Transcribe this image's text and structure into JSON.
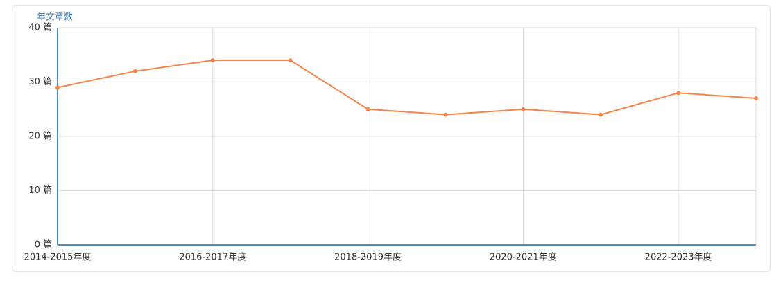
{
  "chart_data": {
    "type": "line",
    "y_axis_name": "年文章数",
    "categories": [
      "2014-2015年度",
      null,
      "2016-2017年度",
      null,
      "2018-2019年度",
      null,
      "2020-2021年度",
      null,
      "2022-2023年度",
      null
    ],
    "series": [
      {
        "name": "年文章数",
        "color": "#f5844c",
        "values": [
          29,
          32,
          34,
          34,
          25,
          24,
          25,
          24,
          28,
          27
        ]
      }
    ],
    "ylim": [
      0,
      40
    ],
    "yticks": [
      {
        "value": 0,
        "label": "0 篇"
      },
      {
        "value": 10,
        "label": "10 篇"
      },
      {
        "value": 20,
        "label": "20 篇"
      },
      {
        "value": 30,
        "label": "30 篇"
      },
      {
        "value": 40,
        "label": "40 篇"
      }
    ],
    "grid": true,
    "axis_color": "#4a8bc2"
  }
}
